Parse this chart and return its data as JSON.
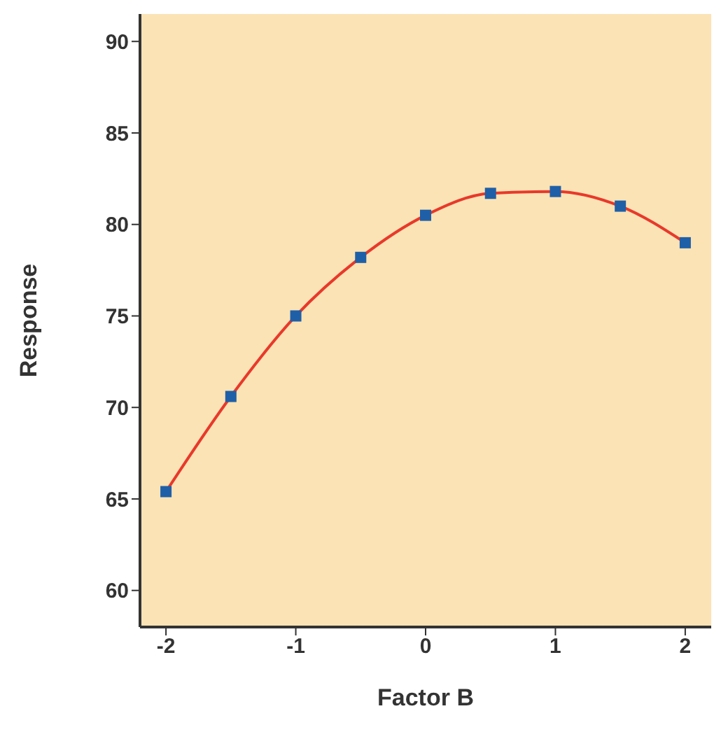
{
  "chart_data": {
    "type": "line",
    "xlabel": "Factor B",
    "ylabel": "Response",
    "x": [
      -2,
      -1.5,
      -1,
      -0.5,
      0,
      0.5,
      1,
      1.5,
      2
    ],
    "series": [
      {
        "color": "#e8392b",
        "marker": "none",
        "values": [
          65.4,
          70.6,
          75.0,
          78.2,
          80.5,
          81.7,
          81.8,
          81.0,
          79.0
        ]
      },
      {
        "type": "scatter",
        "color": "#1f5fa8",
        "marker": "square",
        "values": [
          65.4,
          70.6,
          75.0,
          78.2,
          80.5,
          81.7,
          81.8,
          81.0,
          79.0
        ]
      }
    ],
    "xlim": [
      -2.2,
      2.2
    ],
    "xticks": [
      -2,
      -1,
      0,
      1,
      2
    ],
    "ylim": [
      58,
      91.5
    ],
    "yticks": [
      60,
      65,
      70,
      75,
      80,
      85,
      90
    ],
    "grid": false,
    "line_style": "solid"
  }
}
